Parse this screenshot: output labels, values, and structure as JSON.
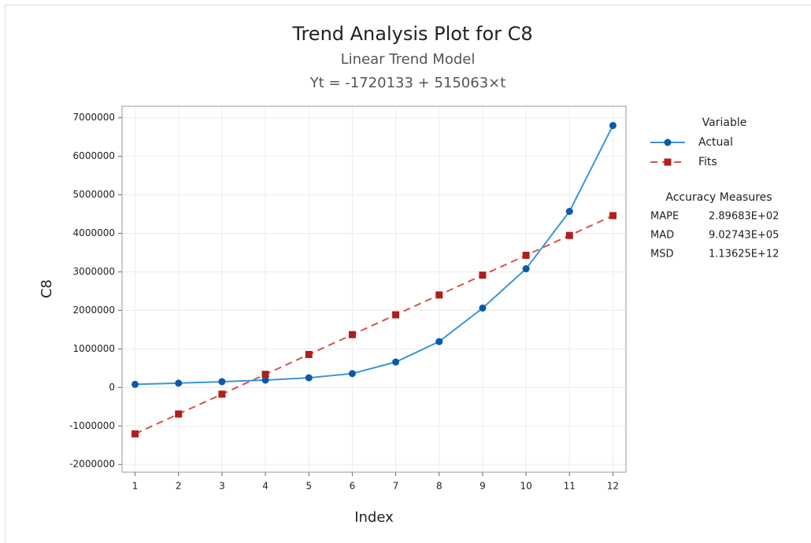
{
  "chart_data": {
    "type": "line",
    "title": "Trend Analysis Plot for C8",
    "subtitle": "Linear Trend Model",
    "equation": "Yt = -1720133 + 515063×t",
    "x_label": "Index",
    "y_label": "C8",
    "x": [
      1,
      2,
      3,
      4,
      5,
      6,
      7,
      8,
      9,
      10,
      11,
      12
    ],
    "series": [
      {
        "name": "Actual",
        "color": "#0a5aa8",
        "line_color": "#3a95d8",
        "marker": "circle",
        "dashed": false,
        "values": [
          80000,
          110000,
          150000,
          190000,
          250000,
          360000,
          660000,
          1190000,
          2060000,
          3080000,
          4570000,
          6800000
        ]
      },
      {
        "name": "Fits",
        "color": "#b01e1e",
        "line_color": "#d9534f",
        "marker": "square",
        "dashed": true,
        "values": [
          -1205070,
          -690007,
          -174944,
          340119,
          855182,
          1370245,
          1885308,
          2400371,
          2915434,
          3430497,
          3945560,
          4460623
        ]
      }
    ],
    "xlim": [
      0.7,
      12.3
    ],
    "xticks": [
      1,
      2,
      3,
      4,
      5,
      6,
      7,
      8,
      9,
      10,
      11,
      12
    ],
    "ylim": [
      -2200000,
      7300000
    ],
    "yticks": [
      -2000000,
      -1000000,
      0,
      1000000,
      2000000,
      3000000,
      4000000,
      5000000,
      6000000,
      7000000
    ],
    "grid": true,
    "legend_title": "Variable",
    "accuracy_measures": {
      "title": "Accuracy Measures",
      "rows": [
        [
          "MAPE",
          "2.89683E+02"
        ],
        [
          "MAD",
          "9.02743E+05"
        ],
        [
          "MSD",
          "1.13625E+12"
        ]
      ]
    }
  }
}
